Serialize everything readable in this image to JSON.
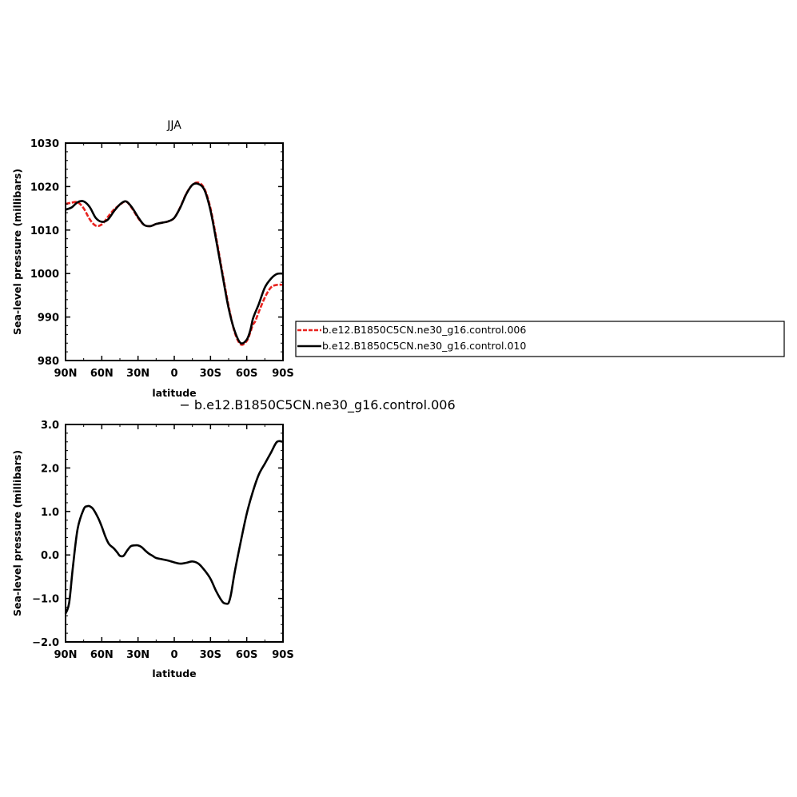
{
  "colors": {
    "series_006": "#e8231f",
    "series_010": "#000000",
    "diff": "#000000"
  },
  "chart_data": [
    {
      "type": "line",
      "title": "JJA",
      "xlabel": "latitude",
      "ylabel": "Sea-level pressure (millibars)",
      "xlim": [
        90,
        -90
      ],
      "ylim": [
        980,
        1030
      ],
      "xticks": [
        90,
        60,
        30,
        0,
        -30,
        -60,
        -90
      ],
      "xtick_labels": [
        "90N",
        "60N",
        "30N",
        "0",
        "30S",
        "60S",
        "90S"
      ],
      "yticks": [
        980,
        990,
        1000,
        1010,
        1020,
        1030
      ],
      "ytick_labels": [
        "980",
        "990",
        "1000",
        "1010",
        "1020",
        "1030"
      ],
      "grid": false,
      "legend_position": "right",
      "series": [
        {
          "name": "b.e12.B1850C5CN.ne30_g16.control.006",
          "color": "#e8231f",
          "style": "dashed",
          "x": [
            90,
            85,
            80,
            75,
            70,
            65,
            60,
            55,
            50,
            45,
            40,
            35,
            30,
            25,
            20,
            15,
            10,
            5,
            0,
            -5,
            -10,
            -15,
            -20,
            -25,
            -30,
            -35,
            -40,
            -45,
            -50,
            -55,
            -60,
            -63,
            -65,
            -67,
            -70,
            -75,
            -80,
            -85,
            -90
          ],
          "y": [
            1016.0,
            1016.3,
            1016.4,
            1015.0,
            1012.5,
            1011.0,
            1011.3,
            1013.0,
            1014.7,
            1015.8,
            1016.6,
            1015.0,
            1012.8,
            1011.2,
            1010.9,
            1011.4,
            1011.7,
            1012.0,
            1012.8,
            1015.3,
            1018.4,
            1020.4,
            1020.9,
            1019.5,
            1015.0,
            1007.8,
            1000.0,
            992.5,
            986.5,
            983.7,
            984.5,
            986.5,
            988.2,
            989.0,
            991.2,
            994.5,
            996.8,
            997.4,
            997.4
          ]
        },
        {
          "name": "b.e12.B1850C5CN.ne30_g16.control.010",
          "color": "#000000",
          "style": "solid",
          "x": [
            90,
            85,
            80,
            75,
            70,
            65,
            60,
            55,
            50,
            45,
            40,
            35,
            30,
            25,
            20,
            15,
            10,
            5,
            0,
            -5,
            -10,
            -15,
            -20,
            -25,
            -30,
            -35,
            -40,
            -45,
            -50,
            -55,
            -60,
            -63,
            -65,
            -67,
            -70,
            -75,
            -80,
            -85,
            -90
          ],
          "y": [
            1014.7,
            1015.2,
            1016.4,
            1016.6,
            1015.3,
            1012.8,
            1011.9,
            1012.4,
            1014.3,
            1015.9,
            1016.6,
            1015.2,
            1013.0,
            1011.2,
            1010.9,
            1011.4,
            1011.7,
            1012.0,
            1012.8,
            1015.2,
            1018.3,
            1020.4,
            1020.6,
            1019.2,
            1014.5,
            1007.2,
            999.5,
            992.0,
            986.8,
            984.0,
            984.8,
            987.0,
            989.5,
            991.0,
            993.0,
            996.8,
            998.8,
            999.9,
            1000.0
          ]
        }
      ]
    },
    {
      "type": "line",
      "title": "− b.e12.B1850C5CN.ne30_g16.control.006",
      "xlabel": "latitude",
      "ylabel": "Sea-level pressure (millibars)",
      "xlim": [
        90,
        -90
      ],
      "ylim": [
        -2.0,
        3.0
      ],
      "xticks": [
        90,
        60,
        30,
        0,
        -30,
        -60,
        -90
      ],
      "xtick_labels": [
        "90N",
        "60N",
        "30N",
        "0",
        "30S",
        "60S",
        "90S"
      ],
      "yticks": [
        -2.0,
        -1.0,
        0.0,
        1.0,
        2.0,
        3.0
      ],
      "ytick_labels": [
        "−2.0",
        "−1.0",
        "0.0",
        "1.0",
        "2.0",
        "3.0"
      ],
      "grid": false,
      "series": [
        {
          "color": "#000000",
          "style": "solid",
          "x": [
            90,
            87,
            84,
            80,
            75,
            72,
            70,
            67,
            63,
            60,
            57,
            54,
            50,
            47,
            45,
            42,
            39,
            36,
            33,
            30,
            27,
            24,
            21,
            18,
            15,
            10,
            5,
            0,
            -5,
            -10,
            -15,
            -20,
            -25,
            -30,
            -35,
            -40,
            -43,
            -45,
            -47,
            -50,
            -55,
            -60,
            -65,
            -70,
            -75,
            -80,
            -85,
            -90
          ],
          "y": [
            -1.35,
            -1.1,
            -0.3,
            0.6,
            1.05,
            1.12,
            1.12,
            1.05,
            0.85,
            0.65,
            0.42,
            0.25,
            0.15,
            0.05,
            -0.02,
            -0.02,
            0.1,
            0.2,
            0.22,
            0.22,
            0.18,
            0.1,
            0.03,
            -0.02,
            -0.07,
            -0.1,
            -0.13,
            -0.17,
            -0.2,
            -0.18,
            -0.15,
            -0.2,
            -0.35,
            -0.55,
            -0.85,
            -1.08,
            -1.12,
            -1.1,
            -0.9,
            -0.4,
            0.3,
            0.95,
            1.45,
            1.85,
            2.1,
            2.35,
            2.6,
            2.6
          ]
        }
      ]
    }
  ]
}
